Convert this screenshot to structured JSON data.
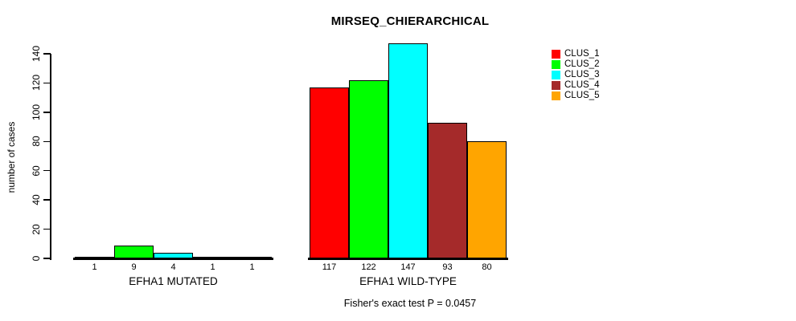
{
  "title": "MIRSEQ_CHIERARCHICAL",
  "chart_data": {
    "type": "bar",
    "title": "MIRSEQ_CHIERARCHICAL",
    "ylabel": "number of cases",
    "xlabel": "",
    "ylim": [
      0,
      150
    ],
    "yticks": [
      0,
      20,
      40,
      60,
      80,
      100,
      120,
      140
    ],
    "grid": false,
    "legend_position": "top-right",
    "bar_value_labels_shown": true,
    "categories": [
      "EFHA1 MUTATED",
      "EFHA1 WILD-TYPE"
    ],
    "series": [
      {
        "name": "CLUS_1",
        "color": "#ff0000",
        "values": [
          1,
          117
        ]
      },
      {
        "name": "CLUS_2",
        "color": "#00ff00",
        "values": [
          9,
          122
        ]
      },
      {
        "name": "CLUS_3",
        "color": "#00ffff",
        "values": [
          4,
          147
        ]
      },
      {
        "name": "CLUS_4",
        "color": "#a52a2a",
        "values": [
          1,
          93
        ]
      },
      {
        "name": "CLUS_5",
        "color": "#ffa500",
        "values": [
          1,
          80
        ]
      }
    ],
    "annotation": "Fisher's exact test P = 0.0457"
  }
}
